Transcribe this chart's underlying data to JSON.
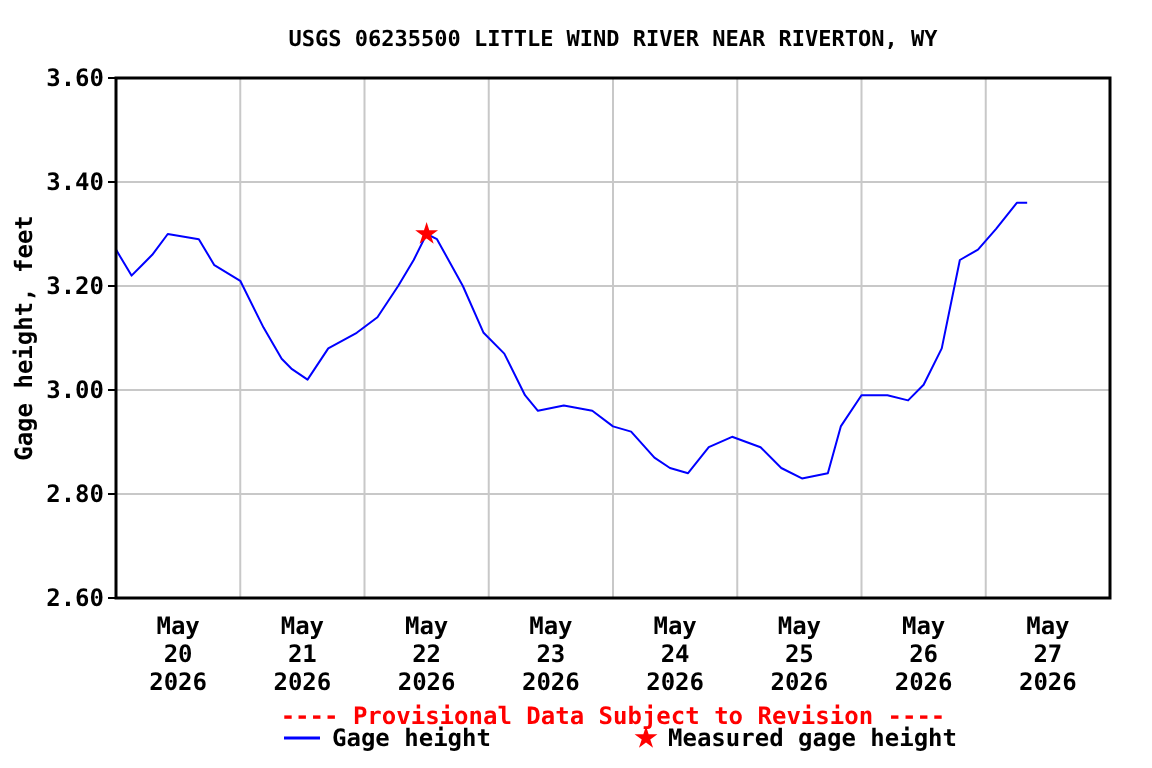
{
  "chart_data": {
    "type": "line",
    "title": "USGS 06235500 LITTLE WIND RIVER NEAR RIVERTON, WY",
    "ylabel": "Gage height, feet",
    "annotations": [
      "---- Provisional Data Subject to Revision ----"
    ],
    "xlim": [
      "2026-05-20T00:00",
      "2026-05-28T00:00"
    ],
    "xticks": [
      {
        "value": "2026-05-20T12:00",
        "label": "May 20 2026"
      },
      {
        "value": "2026-05-21T00:00",
        "label": null
      },
      {
        "value": "2026-05-21T12:00",
        "label": "May 21 2026"
      },
      {
        "value": "2026-05-22T00:00",
        "label": null
      },
      {
        "value": "2026-05-22T12:00",
        "label": "May 22 2026"
      },
      {
        "value": "2026-05-23T00:00",
        "label": null
      },
      {
        "value": "2026-05-23T12:00",
        "label": "May 23 2026"
      },
      {
        "value": "2026-05-24T00:00",
        "label": null
      },
      {
        "value": "2026-05-24T12:00",
        "label": "May 24 2026"
      },
      {
        "value": "2026-05-25T00:00",
        "label": null
      },
      {
        "value": "2026-05-25T12:00",
        "label": "May 25 2026"
      },
      {
        "value": "2026-05-26T00:00",
        "label": null
      },
      {
        "value": "2026-05-26T12:00",
        "label": "May 26 2026"
      },
      {
        "value": "2026-05-27T00:00",
        "label": null
      },
      {
        "value": "2026-05-27T12:00",
        "label": "May 27 2026"
      }
    ],
    "ylim": [
      2.6,
      3.6
    ],
    "yticks": [
      {
        "value": 2.6,
        "label": "2.60"
      },
      {
        "value": 2.8,
        "label": "2.80"
      },
      {
        "value": 3.0,
        "label": "3.00"
      },
      {
        "value": 3.2,
        "label": "3.20"
      },
      {
        "value": 3.4,
        "label": "3.40"
      },
      {
        "value": 3.6,
        "label": "3.60"
      }
    ],
    "grid": true,
    "legend": "bottom",
    "series": [
      {
        "name": "Gage height",
        "color": "#0000ff",
        "x": [
          "2026-05-20T00:00",
          "2026-05-20T03:00",
          "2026-05-20T05:00",
          "2026-05-20T07:00",
          "2026-05-20T10:00",
          "2026-05-20T16:00",
          "2026-05-20T19:00",
          "2026-05-21T00:00",
          "2026-05-21T04:30",
          "2026-05-21T08:00",
          "2026-05-21T10:00",
          "2026-05-21T13:00",
          "2026-05-21T17:00",
          "2026-05-21T22:30",
          "2026-05-22T02:30",
          "2026-05-22T06:30",
          "2026-05-22T09:30",
          "2026-05-22T12:00",
          "2026-05-22T14:00",
          "2026-05-22T19:00",
          "2026-05-22T23:00",
          "2026-05-23T03:00",
          "2026-05-23T07:00",
          "2026-05-23T09:30",
          "2026-05-23T14:30",
          "2026-05-23T20:00",
          "2026-05-24T00:00",
          "2026-05-24T03:30",
          "2026-05-24T08:00",
          "2026-05-24T11:00",
          "2026-05-24T14:30",
          "2026-05-24T18:30",
          "2026-05-24T23:00",
          "2026-05-25T04:30",
          "2026-05-25T08:30",
          "2026-05-25T12:30",
          "2026-05-25T17:30",
          "2026-05-25T20:00",
          "2026-05-26T00:00",
          "2026-05-26T05:00",
          "2026-05-26T09:00",
          "2026-05-26T12:00",
          "2026-05-26T15:30",
          "2026-05-26T19:00",
          "2026-05-26T22:30",
          "2026-05-27T02:00",
          "2026-05-27T06:00",
          "2026-05-27T08:00"
        ],
        "values": [
          3.27,
          3.22,
          3.24,
          3.26,
          3.3,
          3.29,
          3.24,
          3.21,
          3.12,
          3.06,
          3.04,
          3.02,
          3.08,
          3.11,
          3.14,
          3.2,
          3.25,
          3.3,
          3.29,
          3.2,
          3.11,
          3.07,
          2.99,
          2.96,
          2.97,
          2.96,
          2.93,
          2.92,
          2.87,
          2.85,
          2.84,
          2.89,
          2.91,
          2.89,
          2.85,
          2.83,
          2.84,
          2.93,
          2.99,
          2.99,
          2.98,
          3.01,
          3.08,
          3.25,
          3.27,
          3.31,
          3.36,
          3.36
        ]
      },
      {
        "name": "Measured gage height",
        "type": "scatter",
        "color": "#ff0000",
        "marker": "star",
        "x": [
          "2026-05-22T12:00"
        ],
        "values": [
          3.3
        ]
      }
    ]
  }
}
